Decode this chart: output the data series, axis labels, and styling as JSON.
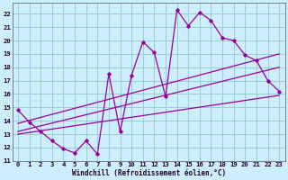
{
  "xlabel": "Windchill (Refroidissement éolien,°C)",
  "xlim": [
    -0.5,
    23.5
  ],
  "ylim": [
    11,
    22.8
  ],
  "yticks": [
    11,
    12,
    13,
    14,
    15,
    16,
    17,
    18,
    19,
    20,
    21,
    22
  ],
  "xticks": [
    0,
    1,
    2,
    3,
    4,
    5,
    6,
    7,
    8,
    9,
    10,
    11,
    12,
    13,
    14,
    15,
    16,
    17,
    18,
    19,
    20,
    21,
    22,
    23
  ],
  "bg_color": "#cceeff",
  "grid_color": "#99cccc",
  "line_color": "#990099",
  "series1_x": [
    0,
    1,
    2,
    3,
    4,
    5,
    6,
    7,
    8,
    9,
    10,
    11,
    12,
    13,
    14,
    15,
    16,
    17,
    18,
    19,
    20,
    21,
    22,
    23
  ],
  "series1_y": [
    14.8,
    13.9,
    13.2,
    12.5,
    11.9,
    11.6,
    12.5,
    11.5,
    17.5,
    13.2,
    17.4,
    19.9,
    19.1,
    15.8,
    22.3,
    21.1,
    22.1,
    21.5,
    20.2,
    20.0,
    18.9,
    18.5,
    17.0,
    16.2
  ],
  "series2_x": [
    0,
    23
  ],
  "series2_y": [
    13.2,
    18.0
  ],
  "series3_x": [
    0,
    23
  ],
  "series3_y": [
    13.8,
    19.0
  ],
  "series4_x": [
    0,
    23
  ],
  "series4_y": [
    13.0,
    15.9
  ]
}
